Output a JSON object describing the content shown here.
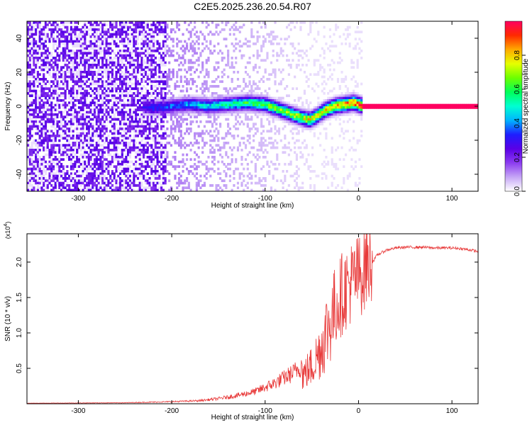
{
  "figure_title": "C2E5.2025.236.20.54.R07",
  "chart_data": [
    {
      "type": "heatmap",
      "name": "spectrogram",
      "xlabel": "Height of straight line (km)",
      "ylabel": "Frequency (Hz)",
      "xlim": [
        -355,
        128
      ],
      "ylim": [
        -50,
        50
      ],
      "xticks": [
        -300,
        -200,
        -100,
        0,
        100
      ],
      "yticks": [
        -40,
        -20,
        0,
        20,
        40
      ],
      "xtick_labels": [
        "-300",
        "-200",
        "-100",
        "0",
        "100"
      ],
      "ytick_labels": [
        "-40",
        "-20",
        "0",
        "20",
        "40"
      ],
      "ridge_frequency": {
        "x": [
          -232,
          -220,
          -200,
          -180,
          -160,
          -140,
          -120,
          -100,
          -85,
          -70,
          -60,
          -52,
          -45,
          -35,
          -25,
          -15,
          -5,
          5,
          128
        ],
        "y": [
          0,
          -1,
          0,
          1,
          0,
          1,
          2,
          1,
          -2,
          -5,
          -7,
          -8,
          -6,
          -2,
          0,
          1,
          2,
          0,
          0
        ]
      },
      "noise_region_x": [
        -355,
        -205
      ],
      "signal_start_x": -232,
      "steady_tone_start_x": 5
    },
    {
      "type": "colorbar",
      "name": "amplitude-colorbar",
      "label": "Normalized spectral amplitude",
      "range": [
        0,
        1
      ],
      "ticks": [
        0.0,
        0.2,
        0.4,
        0.6,
        0.8
      ],
      "tick_labels": [
        "0.0",
        "0.2",
        "0.4",
        "0.6",
        "0.8"
      ],
      "colors": [
        "#ffffff",
        "#c6a6f6",
        "#8c3cf0",
        "#5a00e6",
        "#1e1eff",
        "#00b4ff",
        "#00ffd2",
        "#00ff5a",
        "#6cff00",
        "#e6ff00",
        "#ffaa00",
        "#ff2a00",
        "#ff0060"
      ]
    },
    {
      "type": "line",
      "name": "snr",
      "xlabel": "Height of straight line (km)",
      "ylabel": "SNR (10 * v/v)",
      "y_multiplier_label": "(x10",
      "y_multiplier_exp": "4",
      "y_multiplier_close": ")",
      "xlim": [
        -355,
        128
      ],
      "ylim": [
        0,
        2.4
      ],
      "xticks": [
        -300,
        -200,
        -100,
        0,
        100
      ],
      "yticks": [
        0.5,
        1.0,
        1.5,
        2.0
      ],
      "xtick_labels": [
        "-300",
        "-200",
        "-100",
        "0",
        "100"
      ],
      "ytick_labels": [
        "0.5",
        "1.0",
        "1.5",
        "2.0"
      ],
      "line_color": "#e83a3a",
      "envelope": {
        "x": [
          -355,
          -250,
          -200,
          -170,
          -150,
          -130,
          -110,
          -100,
          -90,
          -80,
          -70,
          -60,
          -50,
          -45,
          -40,
          -35,
          -30,
          -25,
          -20,
          -15,
          -10,
          -5,
          0,
          5,
          10,
          20,
          30,
          40,
          50,
          60,
          70,
          80,
          90,
          100,
          110,
          120,
          128
        ],
        "y": [
          0.005,
          0.01,
          0.02,
          0.03,
          0.05,
          0.08,
          0.12,
          0.16,
          0.2,
          0.25,
          0.3,
          0.38,
          0.5,
          0.62,
          0.75,
          0.95,
          1.1,
          1.3,
          1.45,
          1.55,
          1.62,
          1.7,
          1.75,
          1.8,
          1.9,
          2.1,
          2.17,
          2.2,
          2.21,
          2.21,
          2.21,
          2.2,
          2.2,
          2.2,
          2.19,
          2.17,
          2.15
        ]
      },
      "peak_value": 2.4,
      "peak_x": 8
    }
  ]
}
